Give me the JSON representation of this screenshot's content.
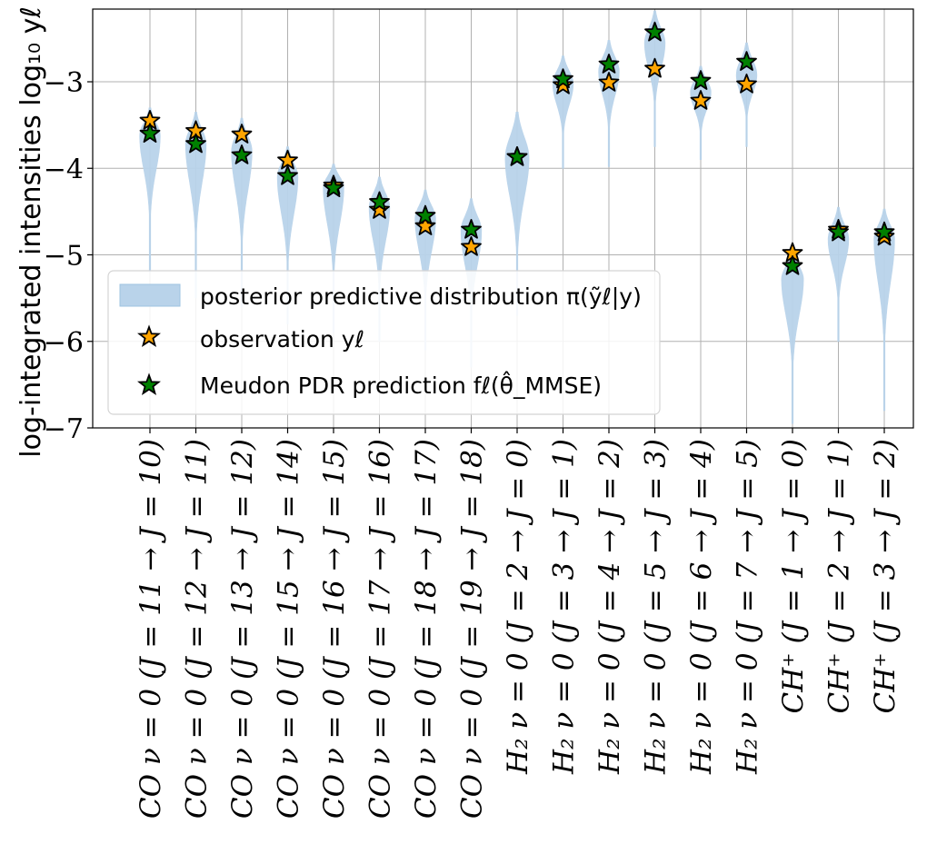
{
  "chart_data": {
    "type": "violin",
    "title": "",
    "ylabel": "log-integrated intensities log₁₀ yℓ",
    "xlabel": "",
    "ylim": [
      -7,
      -2.16
    ],
    "yticks": [
      -7,
      -6,
      -5,
      -4,
      -3
    ],
    "ytick_labels": [
      "−7",
      "−6",
      "−5",
      "−4",
      "−3"
    ],
    "grid": true,
    "legend_position": "lower-left",
    "categories": [
      "CO ν = 0 (J = 11 → J = 10)",
      "CO ν = 0 (J = 12 → J = 11)",
      "CO ν = 0 (J = 13 → J = 12)",
      "CO ν = 0 (J = 15 → J = 14)",
      "CO ν = 0 (J = 16 → J = 15)",
      "CO ν = 0 (J = 17 → J = 16)",
      "CO ν = 0 (J = 18 → J = 17)",
      "CO ν = 0 (J = 19 → J = 18)",
      "H₂ ν = 0 (J = 2 → J = 0)",
      "H₂ ν = 0 (J = 3 → J = 1)",
      "H₂ ν = 0 (J = 4 → J = 2)",
      "H₂ ν = 0 (J = 5 → J = 3)",
      "H₂ ν = 0 (J = 6 → J = 4)",
      "H₂ ν = 0 (J = 7 → J = 5)",
      "CH⁺ (J = 1 → J = 0)",
      "CH⁺ (J = 2 → J = 1)",
      "CH⁺ (J = 3 → J = 2)"
    ],
    "series": [
      {
        "name": "posterior predictive distribution π(ỹℓ|y)",
        "kind": "violin",
        "color": "#b9d3ea",
        "violins": [
          {
            "center": -3.62,
            "top": -3.3,
            "bottom": -5.2,
            "width": 0.45
          },
          {
            "center": -3.72,
            "top": -3.35,
            "bottom": -5.5,
            "width": 0.45
          },
          {
            "center": -3.8,
            "top": -3.42,
            "bottom": -5.6,
            "width": 0.45
          },
          {
            "center": -4.1,
            "top": -3.75,
            "bottom": -5.8,
            "width": 0.45
          },
          {
            "center": -4.22,
            "top": -3.95,
            "bottom": -5.9,
            "width": 0.45
          },
          {
            "center": -4.45,
            "top": -4.1,
            "bottom": -6.0,
            "width": 0.45
          },
          {
            "center": -4.58,
            "top": -4.25,
            "bottom": -6.1,
            "width": 0.45
          },
          {
            "center": -4.72,
            "top": -4.35,
            "bottom": -6.3,
            "width": 0.45
          },
          {
            "center": -3.88,
            "top": -3.35,
            "bottom": -5.7,
            "width": 0.52
          },
          {
            "center": -3.02,
            "top": -2.7,
            "bottom": -4.0,
            "width": 0.45
          },
          {
            "center": -2.88,
            "top": -2.52,
            "bottom": -3.98,
            "width": 0.45
          },
          {
            "center": -2.55,
            "top": -2.18,
            "bottom": -3.75,
            "width": 0.45
          },
          {
            "center": -3.12,
            "top": -2.82,
            "bottom": -3.9,
            "width": 0.45
          },
          {
            "center": -2.92,
            "top": -2.55,
            "bottom": -3.75,
            "width": 0.45
          },
          {
            "center": -5.28,
            "top": -4.95,
            "bottom": -6.95,
            "width": 0.48
          },
          {
            "center": -4.82,
            "top": -4.45,
            "bottom": -6.0,
            "width": 0.45
          },
          {
            "center": -4.82,
            "top": -4.47,
            "bottom": -6.8,
            "width": 0.45
          }
        ]
      },
      {
        "name": "observation yℓ",
        "kind": "star",
        "color": "#ffa500",
        "values": [
          -3.45,
          -3.57,
          -3.61,
          -3.91,
          -4.2,
          -4.48,
          -4.67,
          -4.91,
          -3.87,
          -3.04,
          -3.01,
          -2.85,
          -3.22,
          -3.03,
          -4.98,
          -4.71,
          -4.79
        ]
      },
      {
        "name": "Meudon PDR prediction fℓ(θ̂_MMSE)",
        "kind": "star",
        "color": "#008000",
        "values": [
          -3.6,
          -3.72,
          -3.85,
          -4.09,
          -4.23,
          -4.39,
          -4.55,
          -4.71,
          -3.87,
          -2.97,
          -2.8,
          -2.43,
          -2.99,
          -2.77,
          -5.13,
          -4.74,
          -4.74
        ]
      }
    ]
  }
}
